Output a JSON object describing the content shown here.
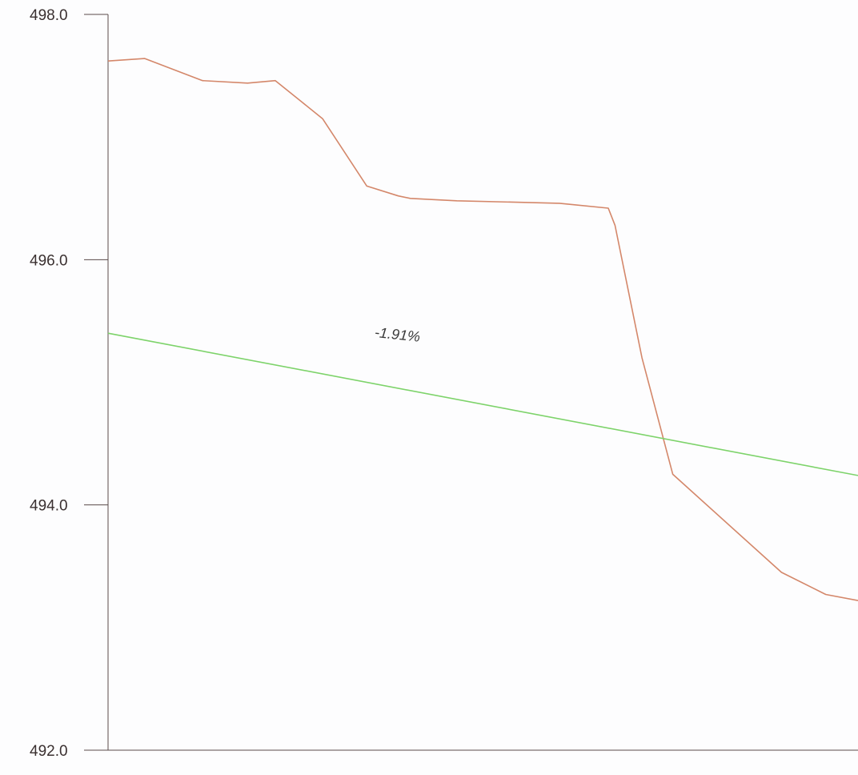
{
  "chart_data": {
    "type": "line",
    "title": "",
    "xlabel": "",
    "ylabel": "",
    "ylim": [
      492.0,
      498.0
    ],
    "xlim": [
      0,
      100
    ],
    "yticks": [
      {
        "value": 492.0,
        "label": "492.0"
      },
      {
        "value": 494.0,
        "label": "494.0"
      },
      {
        "value": 496.0,
        "label": "496.0"
      },
      {
        "value": 498.0,
        "label": "498.0"
      }
    ],
    "grid": false,
    "legend": "none",
    "series": [
      {
        "color": "#d4876a",
        "x": [
          0,
          4.9,
          12.6,
          18.6,
          22.3,
          28.6,
          34.5,
          38.7,
          40.3,
          46.5,
          60.2,
          66.7,
          67.6,
          71.2,
          75.3,
          89.8,
          95.7,
          100
        ],
        "y": [
          497.62,
          497.64,
          497.46,
          497.44,
          497.46,
          497.15,
          496.6,
          496.52,
          496.5,
          496.48,
          496.46,
          496.42,
          496.28,
          495.2,
          494.25,
          493.45,
          493.27,
          493.22
        ]
      },
      {
        "color": "#7dd36a",
        "x": [
          0,
          100
        ],
        "y": [
          495.4,
          494.24
        ]
      }
    ],
    "annotations": [
      {
        "text": "-1.91%",
        "x": 35.5,
        "y": 495.37
      }
    ]
  }
}
